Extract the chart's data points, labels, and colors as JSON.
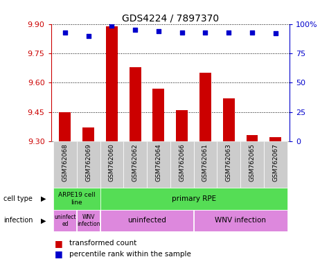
{
  "title": "GDS4224 / 7897370",
  "samples": [
    "GSM762068",
    "GSM762069",
    "GSM762060",
    "GSM762062",
    "GSM762064",
    "GSM762066",
    "GSM762061",
    "GSM762063",
    "GSM762065",
    "GSM762067"
  ],
  "transformed_count": [
    9.45,
    9.37,
    9.89,
    9.68,
    9.57,
    9.46,
    9.65,
    9.52,
    9.33,
    9.32
  ],
  "percentile_rank": [
    93,
    90,
    99,
    95,
    94,
    93,
    93,
    93,
    93,
    92
  ],
  "ylim": [
    9.3,
    9.9
  ],
  "yticks": [
    9.3,
    9.45,
    9.6,
    9.75,
    9.9
  ],
  "right_yticks": [
    0,
    25,
    50,
    75,
    100
  ],
  "right_ylim": [
    0,
    100
  ],
  "bar_color": "#cc0000",
  "dot_color": "#0000cc",
  "left_axis_color": "#cc0000",
  "right_axis_color": "#0000cc",
  "background_color": "#ffffff",
  "plot_bg_color": "#ffffff",
  "cell_type_green": "#55dd55",
  "infection_pink": "#dd88dd",
  "label_row_bg": "#cccccc",
  "legend_items": [
    {
      "label": "transformed count",
      "color": "#cc0000"
    },
    {
      "label": "percentile rank within the sample",
      "color": "#0000cc"
    }
  ]
}
